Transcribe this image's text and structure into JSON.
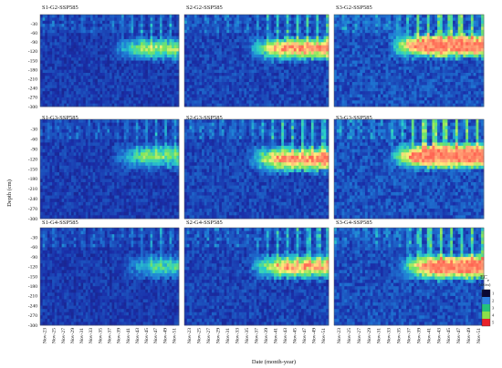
{
  "figure": {
    "ylabel": "Depth (cm)",
    "xlabel": "Date (month-year)"
  },
  "colors": {
    "background": "#2a1f7a",
    "colormap": [
      "#1b0f4f",
      "#1a2ea8",
      "#1f7bd6",
      "#2bd0c8",
      "#7fe65a",
      "#fff07a",
      "#ffa97a",
      "#ff3b3b"
    ]
  },
  "legend": {
    "title": "EC",
    "title_sub": "e",
    "unit": "(dS/m)",
    "ticks": [
      "1",
      "2",
      "3",
      "4",
      "5"
    ]
  },
  "chart_data": [
    {
      "type": "heatmap",
      "title": "S1-G2-SSP585",
      "intensity": 0.35,
      "bands": [
        {
          "depth": 110,
          "onset": "Nov-37",
          "strength": 0.55
        }
      ]
    },
    {
      "type": "heatmap",
      "title": "S2-G2-SSP585",
      "intensity": 0.55,
      "bands": [
        {
          "depth": 110,
          "onset": "Nov-35",
          "strength": 0.85
        }
      ]
    },
    {
      "type": "heatmap",
      "title": "S3-G2-SSP585",
      "intensity": 0.8,
      "bands": [
        {
          "depth": 100,
          "onset": "Nov-33",
          "strength": 1.0
        }
      ]
    },
    {
      "type": "heatmap",
      "title": "S1-G3-SSP585",
      "intensity": 0.35,
      "bands": [
        {
          "depth": 110,
          "onset": "Nov-37",
          "strength": 0.5
        }
      ]
    },
    {
      "type": "heatmap",
      "title": "S2-G3-SSP585",
      "intensity": 0.55,
      "bands": [
        {
          "depth": 120,
          "onset": "Nov-35",
          "strength": 0.85
        }
      ]
    },
    {
      "type": "heatmap",
      "title": "S3-G3-SSP585",
      "intensity": 0.8,
      "bands": [
        {
          "depth": 110,
          "onset": "Nov-33",
          "strength": 1.05
        }
      ]
    },
    {
      "type": "heatmap",
      "title": "S1-G4-SSP585",
      "intensity": 0.3,
      "bands": [
        {
          "depth": 120,
          "onset": "Nov-39",
          "strength": 0.4
        }
      ]
    },
    {
      "type": "heatmap",
      "title": "S2-G4-SSP585",
      "intensity": 0.5,
      "bands": [
        {
          "depth": 120,
          "onset": "Nov-35",
          "strength": 0.75
        }
      ]
    },
    {
      "type": "heatmap",
      "title": "S3-G4-SSP585",
      "intensity": 0.75,
      "bands": [
        {
          "depth": 120,
          "onset": "Nov-35",
          "strength": 1.0
        }
      ]
    }
  ],
  "axes": {
    "y_ticks": [
      "-30",
      "-60",
      "-90",
      "-120",
      "-150",
      "-180",
      "-210",
      "-240",
      "-270",
      "-300"
    ],
    "y_range": [
      0,
      -300
    ],
    "x_ticks": [
      "Nov-23",
      "Nov-25",
      "Nov-27",
      "Nov-29",
      "Nov-31",
      "Nov-33",
      "Nov-35",
      "Nov-37",
      "Nov-39",
      "Nov-41",
      "Nov-43",
      "Nov-45",
      "Nov-47",
      "Nov-49",
      "Nov-51"
    ]
  }
}
